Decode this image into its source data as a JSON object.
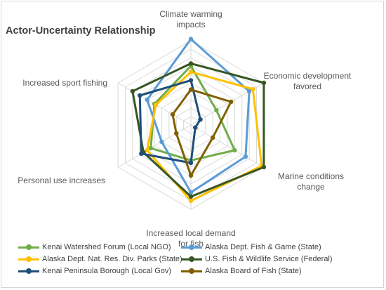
{
  "chart_data": {
    "type": "radar",
    "title": "Actor-Uncertainty Relationship",
    "axes": [
      [
        "Climate warming",
        "impacts"
      ],
      [
        "Economic development",
        "favored"
      ],
      [
        "Marine conditions",
        "change"
      ],
      [
        "Increased local demand",
        "for fish"
      ],
      [
        "Personal use increases"
      ],
      [
        "Increased sport fishing"
      ]
    ],
    "rmax": 10,
    "rings": 10,
    "grid": true,
    "legend_position": "bottom",
    "series": [
      {
        "name": "Kenai Watershed Forum (Local NGO)",
        "color": "#70ad47",
        "values": [
          7.0,
          3.5,
          6.0,
          4.2,
          5.5,
          5.0
        ]
      },
      {
        "name": "Alaska Dept. Fish & Game (State)",
        "color": "#5b9bd5",
        "values": [
          10.2,
          8.0,
          7.5,
          8.0,
          4.0,
          6.0
        ]
      },
      {
        "name": "Alaska Dept. Nat. Res. Div. Parks (State)",
        "color": "#ffc000",
        "values": [
          6.3,
          8.5,
          9.7,
          9.0,
          6.0,
          4.8
        ]
      },
      {
        "name": "U.S. Fish & Wildlife Service (Federal)",
        "color": "#375623",
        "values": [
          7.3,
          10.0,
          10.0,
          8.5,
          6.5,
          8.0
        ]
      },
      {
        "name": "Kenai Peninsula Borough (Local Gov)",
        "color": "#1f4e79",
        "values": [
          5.3,
          1.3,
          0.6,
          4.5,
          6.8,
          7.0
        ]
      },
      {
        "name": "Alaska Board of Fish (State)",
        "color": "#806000",
        "values": [
          4.2,
          5.5,
          3.0,
          6.0,
          2.0,
          2.5
        ]
      }
    ]
  }
}
